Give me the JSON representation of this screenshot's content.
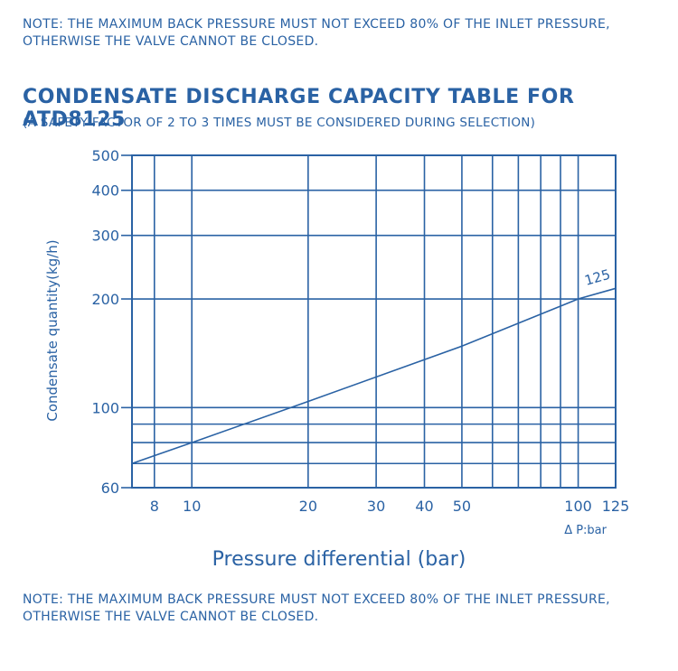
{
  "note": "NOTE: THE MAXIMUM BACK PRESSURE MUST NOT EXCEED 80% OF THE INLET PRESSURE, OTHERWISE THE VALVE CANNOT BE CLOSED.",
  "title": "CONDENSATE DISCHARGE CAPACITY TABLE FOR ATD8125",
  "subtitle": "(A SAFETY FACTOR OF 2 TO 3 TIMES MUST BE CONSIDERED DURING SELECTION)",
  "colors": {
    "primary": "#2a62a4",
    "background": "#ffffff"
  },
  "chart_data": {
    "type": "line",
    "title": "CONDENSATE DISCHARGE CAPACITY TABLE FOR ATD8125",
    "xlabel": "Pressure differential (bar)",
    "xunit_label": "Δ P:bar",
    "ylabel": "Condensate quantity(kg/h)",
    "xscale": "log",
    "yscale": "log",
    "xlim": [
      7,
      125
    ],
    "ylim": [
      60,
      500
    ],
    "grid": true,
    "x_tick_labels": [
      "8",
      "10",
      "20",
      "30",
      "40",
      "50",
      "100",
      "125"
    ],
    "x_gridlines": [
      8,
      10,
      20,
      30,
      40,
      50,
      60,
      70,
      80,
      90,
      100,
      125
    ],
    "y_tick_labels": [
      "60",
      "100",
      "200",
      "300",
      "400",
      "500"
    ],
    "y_gridlines": [
      60,
      70,
      80,
      90,
      100,
      200,
      300,
      400,
      500
    ],
    "series": [
      {
        "name": "125",
        "x": [
          7,
          10,
          20,
          50,
          100,
          125
        ],
        "y": [
          70,
          80,
          104,
          148,
          200,
          214
        ]
      }
    ]
  }
}
